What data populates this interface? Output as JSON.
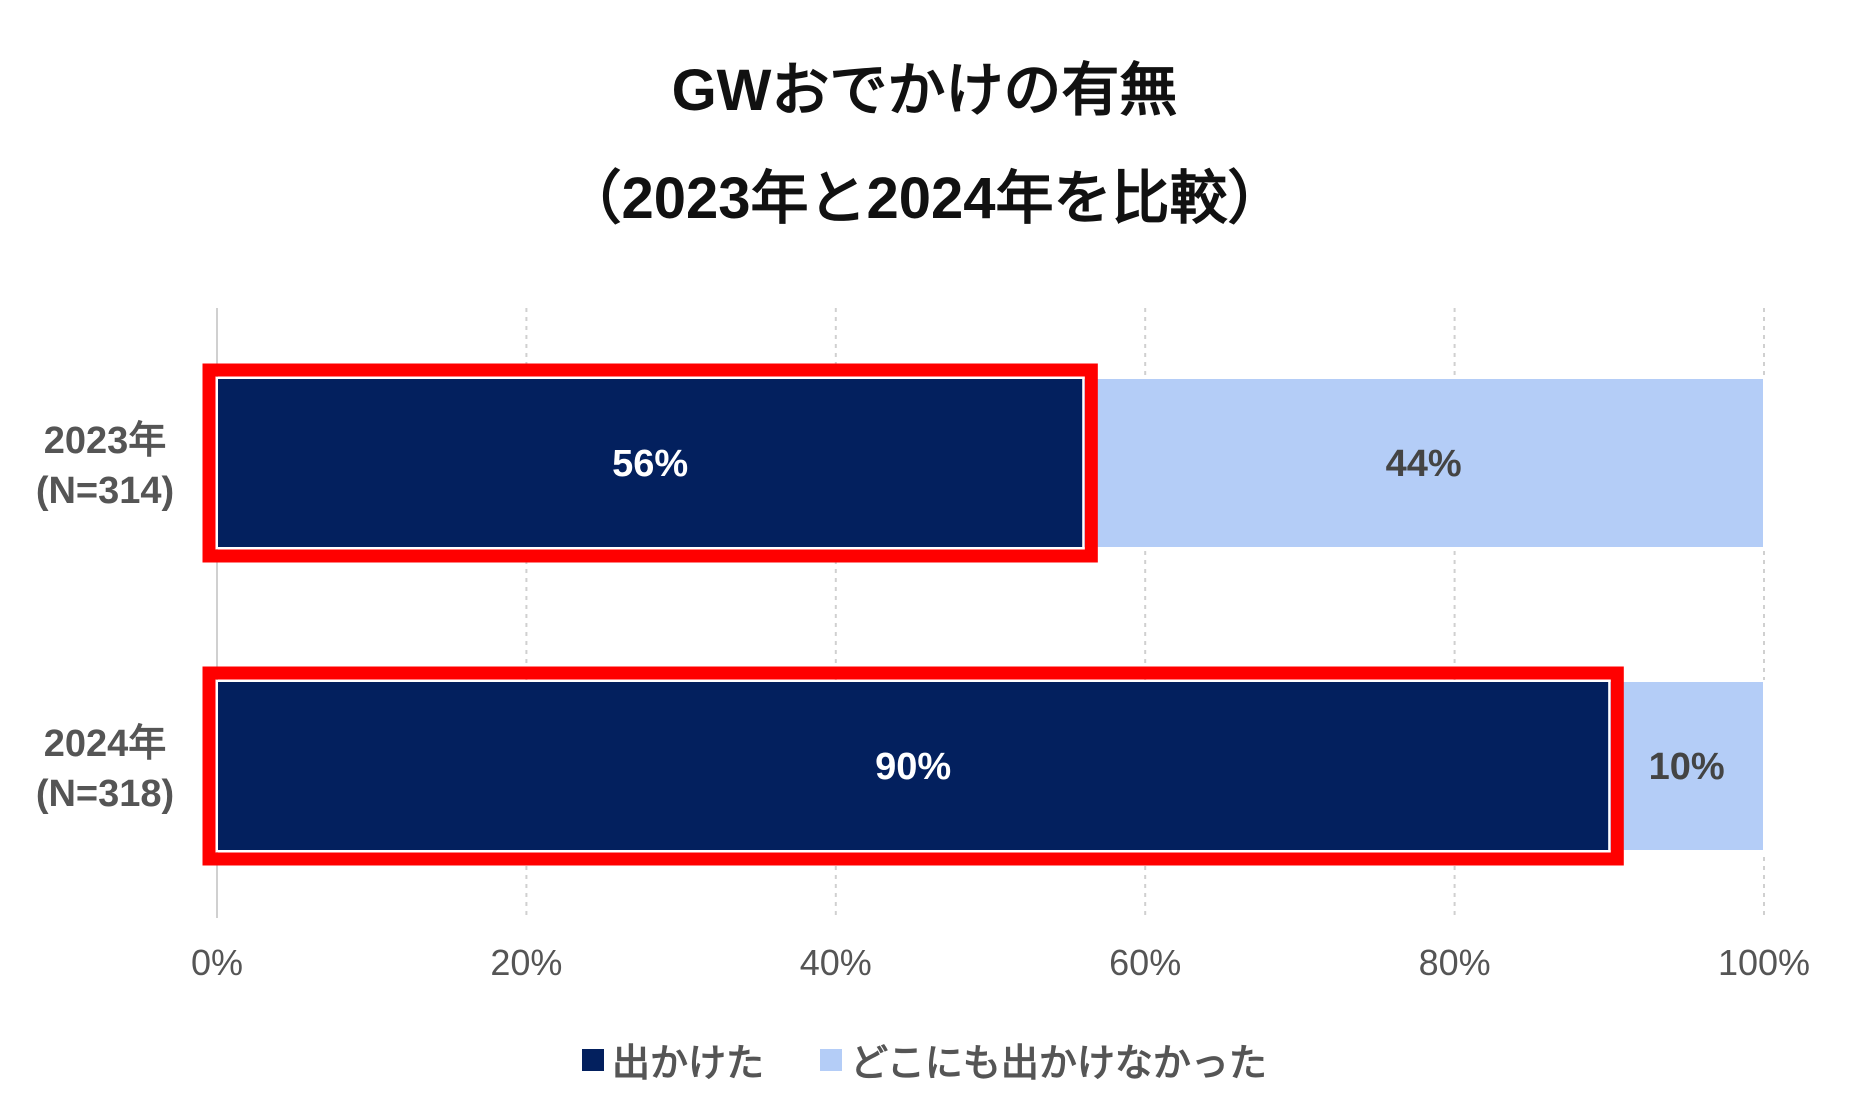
{
  "chart_data": {
    "type": "bar",
    "orientation": "horizontal",
    "stacked": true,
    "title": "GWおでかけの有無",
    "subtitle": "（2023年と2024年を比較）",
    "categories": [
      [
        "2023年",
        "(N=314)"
      ],
      [
        "2024年",
        "(N=318)"
      ]
    ],
    "series": [
      {
        "name": "出かけた",
        "values": [
          56,
          90
        ],
        "labels": [
          "56%",
          "90%"
        ],
        "color": "#03205e",
        "label_color": "#ffffff"
      },
      {
        "name": "どこにも出かけなかった",
        "values": [
          44,
          10
        ],
        "labels": [
          "44%",
          "10%"
        ],
        "color": "#b4cdf7",
        "label_color": "#444444"
      }
    ],
    "xlim": [
      0,
      100
    ],
    "x_ticks": [
      0,
      20,
      40,
      60,
      80,
      100
    ],
    "x_tick_labels": [
      "0%",
      "20%",
      "40%",
      "60%",
      "80%",
      "100%"
    ],
    "grid": true,
    "legend_position": "bottom",
    "highlight": {
      "series": 0,
      "color": "#ff0000"
    }
  }
}
